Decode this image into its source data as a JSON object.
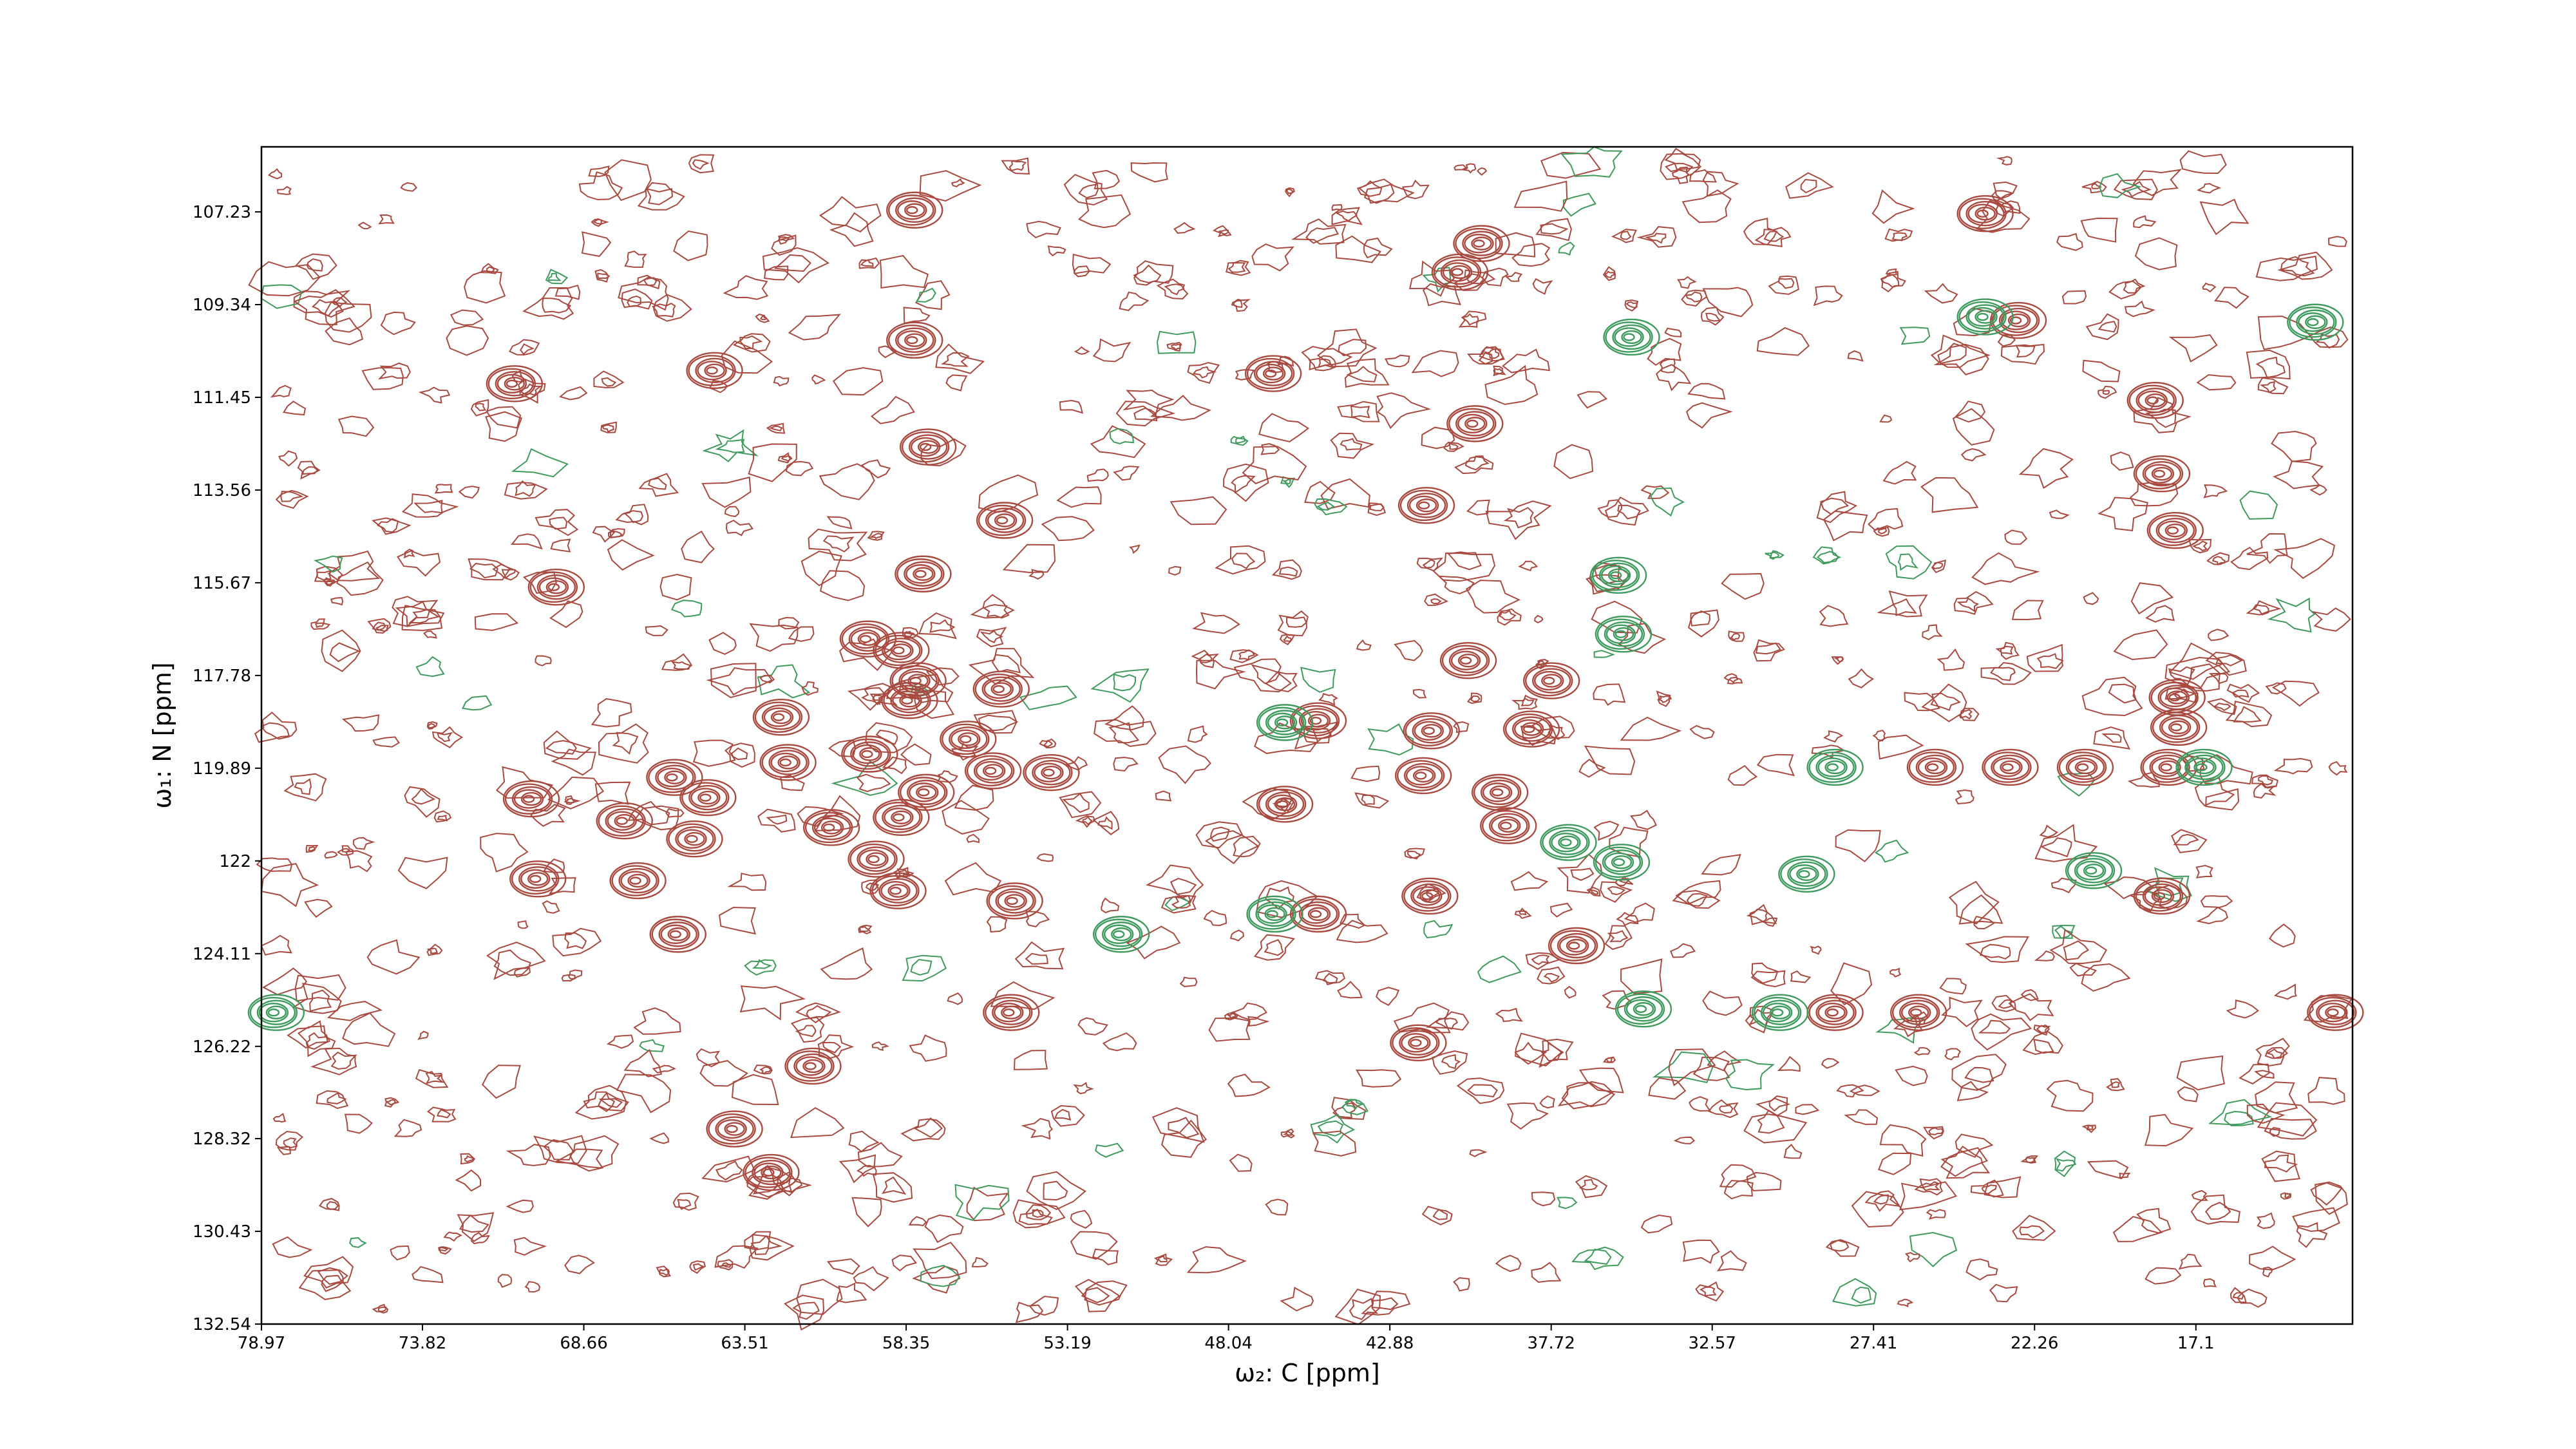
{
  "chart_data": {
    "type": "contour",
    "xlabel": "ω₂: C [ppm]",
    "ylabel": "ω₁: N [ppm]",
    "xlim": [
      78.97,
      12.09
    ],
    "xticks": [
      78.97,
      73.82,
      68.66,
      63.51,
      58.35,
      53.19,
      48.04,
      42.88,
      37.72,
      32.57,
      27.41,
      22.26,
      17.1
    ],
    "ylim": [
      132.54,
      105.75
    ],
    "yticks": [
      107.23,
      109.34,
      111.45,
      113.56,
      115.67,
      117.78,
      119.89,
      122.0,
      124.11,
      126.22,
      128.32,
      130.43,
      132.54
    ],
    "series": [
      {
        "color": "#a84a40",
        "x": [
          58.12,
          58.12,
          40.68,
          39.99,
          46.65,
          64.52,
          22.82,
          18.44,
          18.23,
          17.8,
          57.85,
          55.24,
          41.75,
          40.2,
          45.21,
          41.85,
          41.59,
          38.39,
          37.75,
          40.41,
          46.28,
          45.21,
          39.13,
          39.4,
          36.95,
          41.64,
          59.56,
          58.28,
          58.55,
          58.01,
          62.39,
          62.17,
          59.35,
          58.55,
          57.75,
          60.78,
          58.65,
          56.41,
          55.35,
          53.75,
          55.61,
          54.92,
          55.03,
          59.61,
          65.8,
          64.73,
          65.16,
          65.69,
          66.97,
          67.4,
          70.38,
          70.17,
          70.92,
          69.58,
          57.69,
          61.37,
          62.71,
          63.88,
          23.08,
          25.48,
          20.68,
          18.01,
          17.69,
          17.74,
          18.23,
          28.68,
          26.01,
          12.68,
          42.01,
          23.88
        ],
        "y": [
          107.19,
          110.15,
          108.6,
          107.95,
          110.91,
          110.84,
          109.7,
          111.52,
          113.19,
          114.48,
          115.47,
          114.25,
          113.91,
          112.05,
          118.81,
          120.06,
          119.04,
          119.0,
          117.9,
          117.44,
          120.71,
          123.21,
          121.2,
          120.44,
          123.93,
          122.8,
          119.57,
          118.35,
          117.21,
          117.9,
          118.73,
          119.76,
          121.96,
          121.01,
          120.44,
          121.24,
          122.68,
          119.23,
          118.09,
          119.99,
          119.95,
          122.91,
          125.45,
          116.95,
          120.1,
          120.56,
          121.5,
          123.67,
          122.45,
          121.09,
          120.59,
          122.41,
          111.14,
          115.77,
          112.58,
          126.67,
          129.09,
          128.1,
          119.87,
          119.87,
          119.87,
          119.87,
          118.96,
          118.28,
          122.8,
          125.45,
          125.45,
          125.45,
          126.14,
          107.27
        ]
      },
      {
        "color": "#3f9a5e",
        "x": [
          46.6,
          46.28,
          30.44,
          34.81,
          78.54,
          28.68,
          23.88,
          35.19,
          35.61,
          35.45,
          37.21,
          35.51,
          20.41,
          16.88,
          29.59,
          51.51,
          13.32
        ],
        "y": [
          123.21,
          118.85,
          125.45,
          125.37,
          125.45,
          119.87,
          109.62,
          110.08,
          115.5,
          116.84,
          121.58,
          122.03,
          122.22,
          119.87,
          122.3,
          123.67,
          109.74
        ]
      }
    ]
  }
}
